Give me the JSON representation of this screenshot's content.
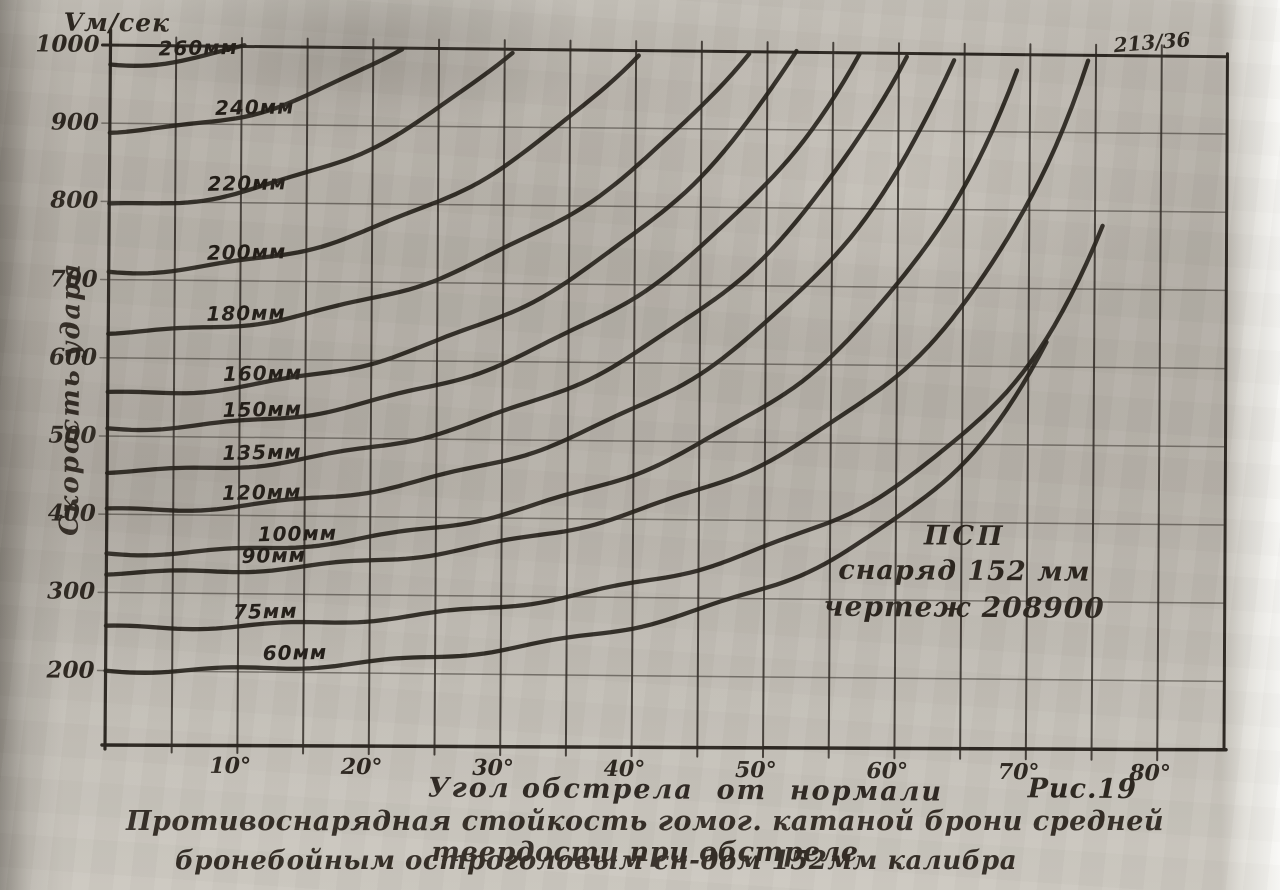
{
  "page": {
    "sheet_number": "213/36",
    "figure_label": "Рис.19"
  },
  "axes": {
    "y_unit": "Vм/сек",
    "y_title": "Скорость удара",
    "y_ticks": [
      1000,
      900,
      800,
      700,
      600,
      500,
      400,
      300,
      200
    ],
    "x_title": "Угол обстрела  от  нормали",
    "x_ticks": [
      "10°",
      "20°",
      "30°",
      "40°",
      "50°",
      "60°",
      "70°",
      "80°"
    ]
  },
  "annotation": {
    "line1": "ПСП",
    "line2": "снаряд 152 мм",
    "line3": "чертеж 208900"
  },
  "caption": {
    "line1": "Противоснарядная стойкость гомог. катаной брони средней твердости при обстреле",
    "line2": "бронебойным остроголовым сн-дом 152мм калибра"
  },
  "chart_data": {
    "type": "line",
    "title": "Противоснарядная стойкость гомог. катаной брони средней твердости при обстреле бронебойным остроголовым сн-дом 152мм калибра",
    "xlabel": "Угол обстрела от нормали",
    "ylabel": "Скорость удара, Vм/сек",
    "x_range_deg": [
      0,
      85
    ],
    "ylim": [
      100,
      1000
    ],
    "grid": {
      "x_step_deg": 5,
      "y_step": 100
    },
    "legend_position": "labels-on-curves",
    "series": [
      {
        "name": "260мм",
        "v0": 975,
        "k": 1.5,
        "end_deg": 10.5,
        "label_deg": 3.2,
        "points": [
          [
            0,
            975
          ],
          [
            5,
            981
          ],
          [
            10,
            998
          ],
          [
            10.5,
            1000
          ]
        ]
      },
      {
        "name": "240мм",
        "v0": 890,
        "k": 1.5,
        "end_deg": 22.3,
        "label_deg": 7.5,
        "points": [
          [
            0,
            890
          ],
          [
            10,
            911
          ],
          [
            20,
            977
          ],
          [
            22.3,
            1000
          ]
        ]
      },
      {
        "name": "220мм",
        "v0": 795,
        "k": 1.5,
        "end_deg": 30.9,
        "label_deg": 7.0,
        "points": [
          [
            0,
            795
          ],
          [
            10,
            813
          ],
          [
            20,
            873
          ],
          [
            30,
            986
          ],
          [
            30.9,
            1000
          ]
        ]
      },
      {
        "name": "200мм",
        "v0": 710,
        "k": 1.25,
        "end_deg": 40.5,
        "label_deg": 7.0,
        "points": [
          [
            0,
            710
          ],
          [
            10,
            724
          ],
          [
            20,
            767
          ],
          [
            30,
            850
          ],
          [
            40,
            995
          ],
          [
            40.5,
            1000
          ]
        ]
      },
      {
        "name": "180мм",
        "v0": 633,
        "k": 1.1,
        "end_deg": 48.7,
        "label_deg": 7.0,
        "points": [
          [
            0,
            633
          ],
          [
            10,
            644
          ],
          [
            20,
            678
          ],
          [
            30,
            741
          ],
          [
            40,
            851
          ],
          [
            48.7,
            1000
          ]
        ]
      },
      {
        "name": "160мм",
        "v0": 554,
        "k": 1.2,
        "end_deg": 52.3,
        "label_deg": 8.3,
        "points": [
          [
            0,
            554
          ],
          [
            10,
            564
          ],
          [
            20,
            597
          ],
          [
            30,
            658
          ],
          [
            40,
            765
          ],
          [
            50,
            945
          ],
          [
            52.3,
            1000
          ]
        ]
      },
      {
        "name": "150мм",
        "v0": 510,
        "k": 1.1,
        "end_deg": 57.2,
        "label_deg": 8.3,
        "points": [
          [
            0,
            510
          ],
          [
            10,
            519
          ],
          [
            20,
            546
          ],
          [
            30,
            597
          ],
          [
            40,
            685
          ],
          [
            50,
            835
          ],
          [
            57.2,
            1000
          ]
        ]
      },
      {
        "name": "135мм",
        "v0": 455,
        "k": 1.1,
        "end_deg": 60.7,
        "label_deg": 8.3,
        "points": [
          [
            0,
            455
          ],
          [
            10,
            463
          ],
          [
            20,
            487
          ],
          [
            30,
            533
          ],
          [
            40,
            611
          ],
          [
            50,
            745
          ],
          [
            60,
            975
          ],
          [
            60.7,
            1000
          ]
        ]
      },
      {
        "name": "120мм",
        "v0": 405,
        "k": 1.07,
        "end_deg": 64.6,
        "label_deg": 8.3,
        "points": [
          [
            0,
            405
          ],
          [
            10,
            412
          ],
          [
            20,
            433
          ],
          [
            30,
            472
          ],
          [
            40,
            540
          ],
          [
            50,
            654
          ],
          [
            60,
            851
          ],
          [
            64.6,
            1000
          ]
        ]
      },
      {
        "name": "100мм",
        "v0": 350,
        "k": 1.0,
        "end_deg": 69.5,
        "label_deg": 11.0,
        "points": [
          [
            0,
            350
          ],
          [
            10,
            355
          ],
          [
            20,
            372
          ],
          [
            30,
            404
          ],
          [
            40,
            457
          ],
          [
            50,
            545
          ],
          [
            60,
            700
          ],
          [
            69.5,
            1000
          ]
        ]
      },
      {
        "name": "90мм",
        "v0": 325,
        "k": 0.85,
        "end_deg": 74.5,
        "label_deg": 9.8,
        "points": [
          [
            0,
            325
          ],
          [
            10,
            329
          ],
          [
            20,
            343
          ],
          [
            30,
            367
          ],
          [
            40,
            408
          ],
          [
            50,
            474
          ],
          [
            60,
            586
          ],
          [
            70,
            809
          ],
          [
            74.5,
            1000
          ]
        ]
      },
      {
        "name": "75мм",
        "v0": 255,
        "k": 0.8,
        "end_deg": 76.0,
        "label_deg": 9.2,
        "points": [
          [
            0,
            255
          ],
          [
            10,
            258
          ],
          [
            20,
            268
          ],
          [
            30,
            286
          ],
          [
            40,
            315
          ],
          [
            50,
            363
          ],
          [
            60,
            444
          ],
          [
            70,
            600
          ],
          [
            76,
            793
          ]
        ]
      },
      {
        "name": "60мм",
        "v0": 200,
        "k": 1.0,
        "end_deg": 72.0,
        "label_deg": 11.5,
        "points": [
          [
            0,
            200
          ],
          [
            10,
            203
          ],
          [
            20,
            213
          ],
          [
            30,
            231
          ],
          [
            40,
            261
          ],
          [
            50,
            311
          ],
          [
            60,
            400
          ],
          [
            70,
            585
          ],
          [
            72,
            647
          ]
        ]
      }
    ],
    "ink_color": "#241f19",
    "grid_color": "#35302a",
    "paper_color": "#b6b1a9"
  }
}
